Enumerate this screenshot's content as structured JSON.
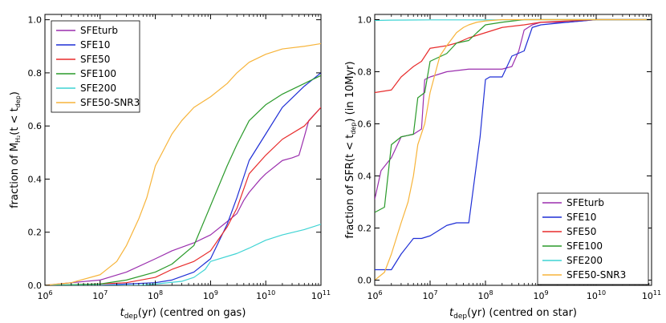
{
  "chart_data": [
    {
      "type": "line",
      "xscale": "log",
      "xlim": [
        1000000.0,
        100000000000.0
      ],
      "ylim": [
        0,
        1.02
      ],
      "xlabel": {
        "main": "t",
        "sub": "dep",
        "rest": "(yr) (centred on gas)"
      },
      "ylabel": {
        "pre": "fraction of M",
        "sub": "H₂",
        "mid": "(t < t",
        "sub2": "dep",
        "post": ")"
      },
      "x_ticks": [
        {
          "base": "10",
          "exp": "6"
        },
        {
          "base": "10",
          "exp": "7"
        },
        {
          "base": "10",
          "exp": "8"
        },
        {
          "base": "10",
          "exp": "9"
        },
        {
          "base": "10",
          "exp": "10"
        },
        {
          "base": "10",
          "exp": "11"
        }
      ],
      "y_ticks": [
        "0.0",
        "0.2",
        "0.4",
        "0.6",
        "0.8",
        "1.0"
      ],
      "legend_position": "top-left",
      "series": [
        {
          "name": "SFEturb",
          "color": "#9b2fae",
          "x": [
            1000000.0,
            3000000.0,
            10000000.0,
            30000000.0,
            100000000.0,
            200000000.0,
            500000000.0,
            1000000000.0,
            2000000000.0,
            3000000000.0,
            4000000000.0,
            5000000000.0,
            8000000000.0,
            10000000000.0,
            20000000000.0,
            30000000000.0,
            40000000000.0,
            50000000000.0,
            60000000000.0,
            100000000000.0
          ],
          "y": [
            0.0,
            0.01,
            0.02,
            0.05,
            0.1,
            0.13,
            0.16,
            0.19,
            0.24,
            0.27,
            0.32,
            0.35,
            0.4,
            0.42,
            0.47,
            0.48,
            0.49,
            0.56,
            0.62,
            0.67
          ]
        },
        {
          "name": "SFE10",
          "color": "#1f2fd6",
          "x": [
            1000000.0,
            10000000.0,
            30000000.0,
            100000000.0,
            200000000.0,
            500000000.0,
            1000000000.0,
            2000000000.0,
            3000000000.0,
            5000000000.0,
            10000000000.0,
            20000000000.0,
            50000000000.0,
            100000000000.0
          ],
          "y": [
            0.0,
            0.0,
            0.005,
            0.01,
            0.02,
            0.05,
            0.1,
            0.23,
            0.33,
            0.47,
            0.57,
            0.67,
            0.75,
            0.8
          ]
        },
        {
          "name": "SFE50",
          "color": "#e82c2c",
          "x": [
            1000000.0,
            10000000.0,
            30000000.0,
            100000000.0,
            200000000.0,
            500000000.0,
            1000000000.0,
            2000000000.0,
            3000000000.0,
            5000000000.0,
            10000000000.0,
            20000000000.0,
            50000000000.0,
            100000000000.0
          ],
          "y": [
            0.0,
            0.005,
            0.01,
            0.03,
            0.06,
            0.09,
            0.13,
            0.22,
            0.29,
            0.42,
            0.49,
            0.55,
            0.6,
            0.67
          ]
        },
        {
          "name": "SFE100",
          "color": "#2a9a2a",
          "x": [
            1000000.0,
            10000000.0,
            30000000.0,
            100000000.0,
            200000000.0,
            500000000.0,
            1000000000.0,
            2000000000.0,
            3000000000.0,
            5000000000.0,
            10000000000.0,
            20000000000.0,
            50000000000.0,
            100000000000.0
          ],
          "y": [
            0.0,
            0.005,
            0.02,
            0.05,
            0.08,
            0.15,
            0.3,
            0.45,
            0.53,
            0.62,
            0.68,
            0.72,
            0.76,
            0.79
          ]
        },
        {
          "name": "SFE200",
          "color": "#3fd4d4",
          "x": [
            1000000.0,
            50000000.0,
            100000000.0,
            300000000.0,
            500000000.0,
            800000000.0,
            1000000000.0,
            3000000000.0,
            5000000000.0,
            10000000000.0,
            20000000000.0,
            50000000000.0,
            100000000000.0
          ],
          "y": [
            0.0,
            0.0,
            0.005,
            0.015,
            0.03,
            0.06,
            0.09,
            0.12,
            0.14,
            0.17,
            0.19,
            0.21,
            0.23
          ]
        },
        {
          "name": "SFE50-SNR3",
          "color": "#f7b43a",
          "x": [
            1000000.0,
            3000000.0,
            10000000.0,
            20000000.0,
            30000000.0,
            50000000.0,
            70000000.0,
            100000000.0,
            200000000.0,
            300000000.0,
            500000000.0,
            1000000000.0,
            2000000000.0,
            3000000000.0,
            5000000000.0,
            10000000000.0,
            20000000000.0,
            50000000000.0,
            100000000000.0
          ],
          "y": [
            0.0,
            0.01,
            0.04,
            0.09,
            0.15,
            0.25,
            0.33,
            0.45,
            0.57,
            0.62,
            0.67,
            0.71,
            0.76,
            0.8,
            0.84,
            0.87,
            0.89,
            0.9,
            0.91
          ]
        }
      ]
    },
    {
      "type": "line",
      "xscale": "log",
      "xlim": [
        1000000.0,
        100000000000.0
      ],
      "ylim": [
        -0.02,
        1.02
      ],
      "xlabel": {
        "main": "t",
        "sub": "dep",
        "rest": "(yr) (centred on star)"
      },
      "ylabel": {
        "pre": "fraction of SFR",
        "sub": "",
        "mid": "(t < t",
        "sub2": "dep",
        "post": ") (in 10Myr)"
      },
      "x_ticks": [
        {
          "base": "10",
          "exp": "6"
        },
        {
          "base": "10",
          "exp": "7"
        },
        {
          "base": "10",
          "exp": "8"
        },
        {
          "base": "10",
          "exp": "9"
        },
        {
          "base": "10",
          "exp": "10"
        },
        {
          "base": "10",
          "exp": "11"
        }
      ],
      "y_ticks": [
        "0.0",
        "0.2",
        "0.4",
        "0.6",
        "0.8",
        "1.0"
      ],
      "legend_position": "bottom-right",
      "series": [
        {
          "name": "SFEturb",
          "color": "#9b2fae",
          "x": [
            1000000.0,
            1300000.0,
            2000000.0,
            3000000.0,
            5000000.0,
            7000000.0,
            8000000.0,
            10000000.0,
            20000000.0,
            50000000.0,
            100000000.0,
            200000000.0,
            300000000.0,
            400000000.0,
            500000000.0,
            700000000.0,
            1000000000.0,
            3000000000.0,
            10000000000.0,
            100000000000.0
          ],
          "y": [
            0.31,
            0.42,
            0.47,
            0.55,
            0.56,
            0.58,
            0.77,
            0.78,
            0.8,
            0.81,
            0.81,
            0.81,
            0.82,
            0.88,
            0.96,
            0.98,
            0.99,
            0.99,
            1.0,
            1.0
          ]
        },
        {
          "name": "SFE10",
          "color": "#1f2fd6",
          "x": [
            1000000.0,
            2000000.0,
            3000000.0,
            5000000.0,
            7000000.0,
            10000000.0,
            20000000.0,
            30000000.0,
            50000000.0,
            80000000.0,
            100000000.0,
            120000000.0,
            200000000.0,
            300000000.0,
            500000000.0,
            700000000.0,
            1000000000.0,
            3000000000.0,
            10000000000.0,
            100000000000.0
          ],
          "y": [
            0.04,
            0.04,
            0.1,
            0.16,
            0.16,
            0.17,
            0.21,
            0.22,
            0.22,
            0.55,
            0.77,
            0.78,
            0.78,
            0.86,
            0.88,
            0.97,
            0.98,
            0.99,
            1.0,
            1.0
          ]
        },
        {
          "name": "SFE50",
          "color": "#e82c2c",
          "x": [
            1000000.0,
            2000000.0,
            3000000.0,
            5000000.0,
            7000000.0,
            10000000.0,
            20000000.0,
            30000000.0,
            50000000.0,
            100000000.0,
            200000000.0,
            500000000.0,
            1000000000.0,
            10000000000.0,
            100000000000.0
          ],
          "y": [
            0.72,
            0.73,
            0.78,
            0.82,
            0.84,
            0.89,
            0.9,
            0.91,
            0.93,
            0.95,
            0.97,
            0.98,
            0.99,
            1.0,
            1.0
          ]
        },
        {
          "name": "SFE100",
          "color": "#2a9a2a",
          "x": [
            1000000.0,
            1500000.0,
            2000000.0,
            3000000.0,
            5000000.0,
            6000000.0,
            8000000.0,
            10000000.0,
            20000000.0,
            30000000.0,
            50000000.0,
            70000000.0,
            100000000.0,
            200000000.0,
            500000000.0,
            1000000000.0,
            10000000000.0,
            100000000000.0
          ],
          "y": [
            0.26,
            0.28,
            0.52,
            0.55,
            0.56,
            0.7,
            0.72,
            0.84,
            0.87,
            0.91,
            0.92,
            0.95,
            0.98,
            0.99,
            1.0,
            1.0,
            1.0,
            1.0
          ]
        },
        {
          "name": "SFE200",
          "color": "#3fd4d4",
          "x": [
            1000000.0,
            2000000.0,
            10000000.0,
            100000000.0,
            1000000000.0,
            10000000000.0,
            100000000000.0
          ],
          "y": [
            0.997,
            0.998,
            0.999,
            0.999,
            1.0,
            1.0,
            1.0
          ]
        },
        {
          "name": "SFE50-SNR3",
          "color": "#f7b43a",
          "x": [
            1000000.0,
            1500000.0,
            2000000.0,
            3000000.0,
            4000000.0,
            5000000.0,
            6000000.0,
            8000000.0,
            10000000.0,
            15000000.0,
            20000000.0,
            30000000.0,
            40000000.0,
            50000000.0,
            70000000.0,
            100000000.0,
            200000000.0,
            500000000.0,
            1000000000.0,
            100000000000.0
          ],
          "y": [
            0.0,
            0.03,
            0.1,
            0.22,
            0.3,
            0.4,
            0.52,
            0.6,
            0.72,
            0.86,
            0.9,
            0.95,
            0.97,
            0.98,
            0.99,
            0.995,
            1.0,
            1.0,
            1.0,
            1.0
          ]
        }
      ]
    }
  ]
}
